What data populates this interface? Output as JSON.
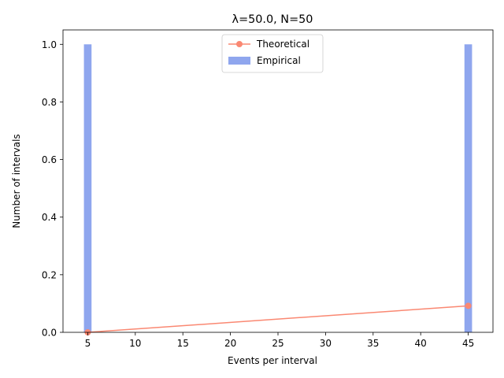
{
  "chart_data": {
    "type": "bar",
    "title": "λ=50.0, N=50",
    "xlabel": "Events per interval",
    "ylabel": "Number of intervals",
    "xlim": [
      2.4,
      47.6
    ],
    "ylim": [
      0,
      1.05
    ],
    "xticks": [
      5,
      10,
      15,
      20,
      25,
      30,
      35,
      40,
      45
    ],
    "xtick_labels": [
      "5",
      "10",
      "15",
      "20",
      "25",
      "30",
      "35",
      "40",
      "45"
    ],
    "yticks": [
      0.0,
      0.2,
      0.4,
      0.6,
      0.8,
      1.0
    ],
    "ytick_labels": [
      "0.0",
      "0.2",
      "0.4",
      "0.6",
      "0.8",
      "1.0"
    ],
    "grid": false,
    "legend_position": "top-center",
    "series": [
      {
        "name": "Empirical",
        "kind": "bar",
        "color": "#8fa6ee",
        "bar_width": 0.8,
        "x": [
          5,
          45
        ],
        "values": [
          1.0,
          1.0
        ]
      },
      {
        "name": "Theoretical",
        "kind": "line",
        "color": "#fa8872",
        "marker": "circle",
        "x": [
          5,
          45
        ],
        "values": [
          0.0,
          0.092
        ]
      }
    ]
  }
}
